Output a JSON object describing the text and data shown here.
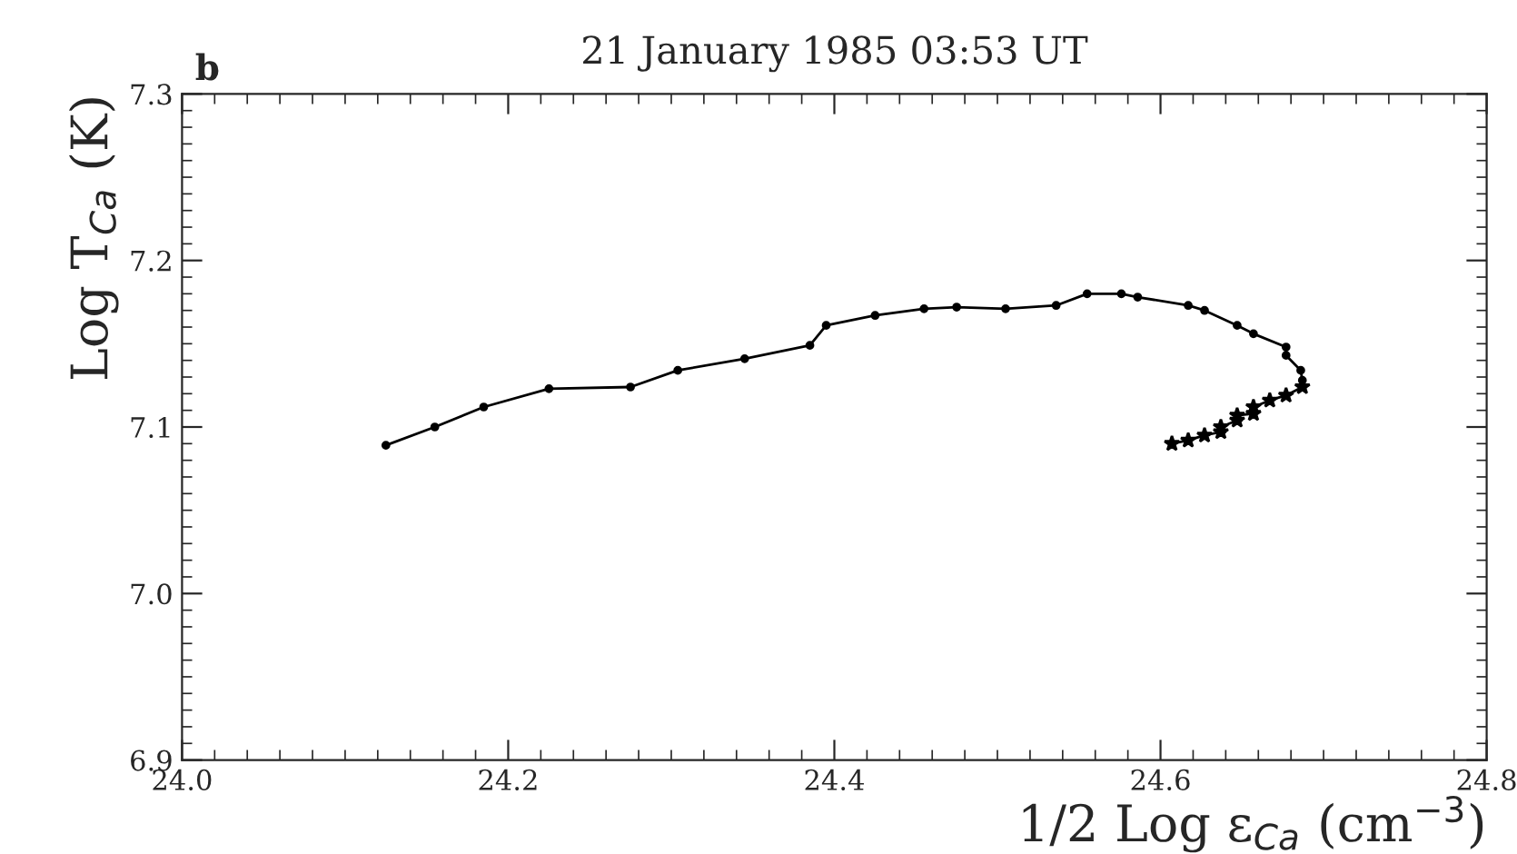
{
  "chart_data": {
    "type": "line",
    "title": "21 January 1985 03:53 UT",
    "xlabel": "1/2 Log ε$_{Ca}$ (cm$^{−3}$)",
    "ylabel": "Log T$_{Ca}$ (K)",
    "annotations": [
      "b"
    ],
    "xlim": [
      24.0,
      24.8
    ],
    "ylim": [
      6.9,
      7.3
    ],
    "xticks": [
      {
        "value": 24.0,
        "label": "24.0"
      },
      24.2,
      24.4,
      24.6,
      24.8
    ],
    "yticks": [
      6.9,
      {
        "value": 7.0,
        "label": "7.0"
      },
      7.1,
      7.2,
      7.3
    ],
    "grid": false,
    "line_style": "solid",
    "series": [
      {
        "color": "#000000",
        "marker": "circle",
        "x": [
          24.125,
          24.155,
          24.185,
          24.225,
          24.275,
          24.304,
          24.345,
          24.385,
          24.395,
          24.425,
          24.455,
          24.475,
          24.505,
          24.536,
          24.555,
          24.576,
          24.586,
          24.617,
          24.627,
          24.647,
          24.657,
          24.677,
          24.677,
          24.686,
          24.687,
          24.687
        ],
        "values": [
          7.089,
          7.1,
          7.112,
          7.123,
          7.124,
          7.134,
          7.141,
          7.149,
          7.161,
          7.167,
          7.171,
          7.172,
          7.171,
          7.173,
          7.18,
          7.18,
          7.178,
          7.173,
          7.17,
          7.161,
          7.156,
          7.148,
          7.143,
          7.134,
          7.128,
          7.124
        ]
      },
      {
        "color": "#000000",
        "marker": "star",
        "x": [
          24.687,
          24.677,
          24.667,
          24.657,
          24.657,
          24.647,
          24.647,
          24.637,
          24.637,
          24.627,
          24.617,
          24.607
        ],
        "values": [
          7.124,
          7.119,
          7.116,
          7.112,
          7.108,
          7.107,
          7.104,
          7.1,
          7.097,
          7.095,
          7.092,
          7.09
        ]
      }
    ]
  }
}
